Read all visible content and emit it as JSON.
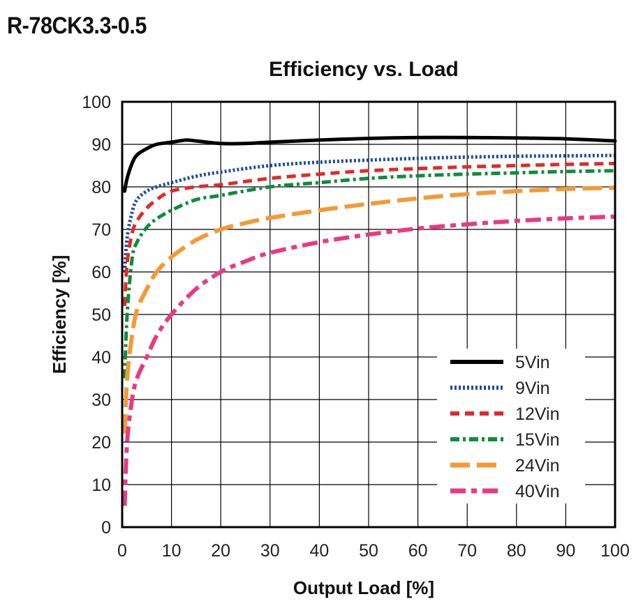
{
  "page": {
    "heading": "R-78CK3.3-0.5"
  },
  "chart_data": {
    "type": "line",
    "title": "Efficiency vs. Load",
    "xlabel": "Output Load [%]",
    "ylabel": "Efficiency [%]",
    "xlim": [
      0,
      100
    ],
    "ylim": [
      0,
      100
    ],
    "xticks": [
      0,
      10,
      20,
      30,
      40,
      50,
      60,
      70,
      80,
      90,
      100
    ],
    "yticks": [
      0,
      10,
      20,
      30,
      40,
      50,
      60,
      70,
      80,
      90,
      100
    ],
    "grid": true,
    "legend_position": "bottom-right",
    "series": [
      {
        "name": "5Vin",
        "color": "#000000",
        "dash": "solid",
        "x": [
          0.5,
          1,
          2,
          3,
          5,
          7,
          10,
          13,
          15,
          20,
          25,
          30,
          40,
          50,
          60,
          70,
          80,
          90,
          100
        ],
        "y": [
          79,
          82,
          85.5,
          87.5,
          89,
          90,
          90.5,
          91,
          90.8,
          90.2,
          90.2,
          90.5,
          91,
          91.4,
          91.6,
          91.6,
          91.5,
          91.3,
          90.8
        ]
      },
      {
        "name": "9Vin",
        "color": "#1f4e9b",
        "dash": "dotted",
        "x": [
          0.5,
          1,
          2,
          3,
          5,
          7,
          10,
          15,
          20,
          30,
          40,
          50,
          60,
          70,
          80,
          90,
          100
        ],
        "y": [
          60,
          68,
          74,
          77,
          79,
          80,
          81,
          82.5,
          83.5,
          85,
          85.8,
          86.3,
          86.7,
          87,
          87.2,
          87.3,
          87.4
        ]
      },
      {
        "name": "12Vin",
        "color": "#e02a2a",
        "dash": "dashed",
        "x": [
          0.5,
          1,
          2,
          3,
          5,
          7,
          10,
          15,
          20,
          30,
          40,
          50,
          60,
          70,
          80,
          90,
          100
        ],
        "y": [
          52,
          62,
          69,
          72,
          75,
          77,
          79,
          80,
          80.5,
          82,
          83,
          83.8,
          84.3,
          84.7,
          85,
          85.3,
          85.5
        ]
      },
      {
        "name": "15Vin",
        "color": "#0e8c3c",
        "dash": "dashdot",
        "x": [
          0.5,
          1,
          2,
          3,
          5,
          7,
          10,
          15,
          20,
          30,
          40,
          50,
          60,
          70,
          80,
          90,
          100
        ],
        "y": [
          35,
          50,
          63,
          67,
          70.5,
          72.5,
          74.5,
          77,
          78,
          80,
          81,
          82,
          82.6,
          83,
          83.3,
          83.6,
          83.8
        ]
      },
      {
        "name": "24Vin",
        "color": "#f39a36",
        "dash": "longdash",
        "x": [
          0.5,
          1,
          2,
          3,
          5,
          7,
          10,
          15,
          20,
          25,
          30,
          40,
          50,
          60,
          70,
          80,
          90,
          100
        ],
        "y": [
          22,
          35,
          45,
          51,
          56,
          60,
          63.5,
          67.5,
          70,
          71.5,
          72.7,
          74.5,
          76,
          77.3,
          78.3,
          79,
          79.5,
          79.8
        ]
      },
      {
        "name": "40Vin",
        "color": "#e83a83",
        "dash": "dashdotlong",
        "x": [
          0.5,
          1,
          2,
          3,
          5,
          7,
          10,
          15,
          20,
          25,
          30,
          40,
          50,
          60,
          70,
          80,
          90,
          100
        ],
        "y": [
          5,
          20,
          30,
          35,
          40,
          45,
          50,
          56,
          60,
          62.5,
          64.5,
          67,
          68.8,
          70.2,
          71.2,
          72,
          72.6,
          73
        ]
      }
    ]
  }
}
